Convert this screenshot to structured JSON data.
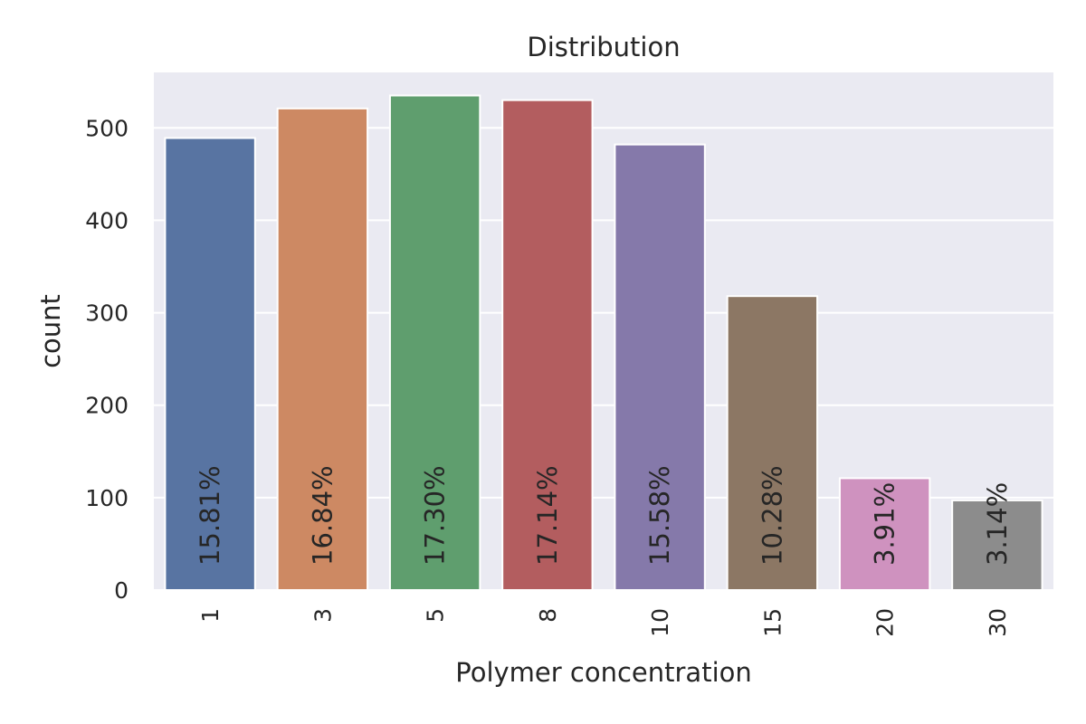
{
  "chart_data": {
    "type": "bar",
    "title": "Distribution",
    "xlabel": "Polymer concentration",
    "ylabel": "count",
    "categories": [
      "1",
      "3",
      "5",
      "8",
      "10",
      "15",
      "20",
      "30"
    ],
    "values": [
      489,
      521,
      535,
      530,
      482,
      318,
      121,
      97
    ],
    "percent_labels": [
      "15.81%",
      "16.84%",
      "17.30%",
      "17.14%",
      "15.58%",
      "10.28%",
      "3.91%",
      "3.14%"
    ],
    "colors": [
      "#5874a2",
      "#cd8963",
      "#5f9e6e",
      "#b35d5f",
      "#8579aa",
      "#8c7764",
      "#cf92bf",
      "#8c8c8c"
    ],
    "ylim": [
      0,
      560
    ],
    "yticks": [
      0,
      100,
      200,
      300,
      400,
      500
    ],
    "grid": true,
    "background": "#eaeaf2",
    "legend": "none"
  }
}
